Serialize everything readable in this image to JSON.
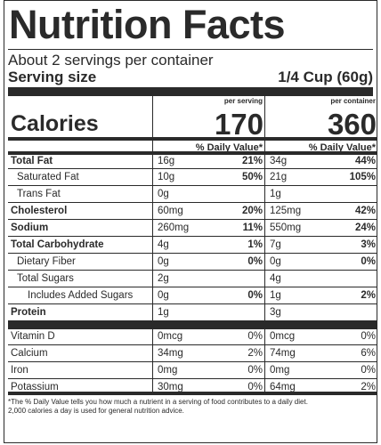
{
  "header": {
    "title": "Nutrition Facts",
    "servings": "About 2 servings per container",
    "serving_size_label": "Serving size",
    "serving_size_value": "1/4 Cup (60g)"
  },
  "columns": {
    "per_serving": "per serving",
    "per_container": "per container"
  },
  "calories": {
    "label": "Calories",
    "per_serving": "170",
    "per_container": "360"
  },
  "daily_value_header": "% Daily Value*",
  "nutrients": [
    {
      "name": "Total Fat",
      "s_amt": "16g",
      "s_pct": "21%",
      "c_amt": "34g",
      "c_pct": "44%"
    },
    {
      "name": "Saturated Fat",
      "s_amt": "10g",
      "s_pct": "50%",
      "c_amt": "21g",
      "c_pct": "105%"
    },
    {
      "name": "Trans Fat",
      "s_amt": "0g",
      "s_pct": "",
      "c_amt": "1g",
      "c_pct": ""
    },
    {
      "name": "Cholesterol",
      "s_amt": "60mg",
      "s_pct": "20%",
      "c_amt": "125mg",
      "c_pct": "42%"
    },
    {
      "name": "Sodium",
      "s_amt": "260mg",
      "s_pct": "11%",
      "c_amt": "550mg",
      "c_pct": "24%"
    },
    {
      "name": "Total Carbohydrate",
      "s_amt": "4g",
      "s_pct": "1%",
      "c_amt": "7g",
      "c_pct": "3%"
    },
    {
      "name": "Dietary Fiber",
      "s_amt": "0g",
      "s_pct": "0%",
      "c_amt": "0g",
      "c_pct": "0%"
    },
    {
      "name": "Total Sugars",
      "s_amt": "2g",
      "s_pct": "",
      "c_amt": "4g",
      "c_pct": ""
    },
    {
      "name": "Includes Added Sugars",
      "s_amt": "0g",
      "s_pct": "0%",
      "c_amt": "1g",
      "c_pct": "2%"
    },
    {
      "name": "Protein",
      "s_amt": "1g",
      "s_pct": "",
      "c_amt": "3g",
      "c_pct": ""
    }
  ],
  "vitamins": [
    {
      "name": "Vitamin D",
      "s_amt": "0mcg",
      "s_pct": "0%",
      "c_amt": "0mcg",
      "c_pct": "0%"
    },
    {
      "name": "Calcium",
      "s_amt": "34mg",
      "s_pct": "2%",
      "c_amt": "74mg",
      "c_pct": "6%"
    },
    {
      "name": "Iron",
      "s_amt": "0mg",
      "s_pct": "0%",
      "c_amt": "0mg",
      "c_pct": "0%"
    },
    {
      "name": "Potassium",
      "s_amt": "30mg",
      "s_pct": "0%",
      "c_amt": "64mg",
      "c_pct": "2%"
    }
  ],
  "footnote": {
    "line1": "*The % Daily Value tells you how much a nutrient in a serving of food contributes to a daily diet.",
    "line2": "2,000 calories a day is used for general nutrition advice."
  }
}
